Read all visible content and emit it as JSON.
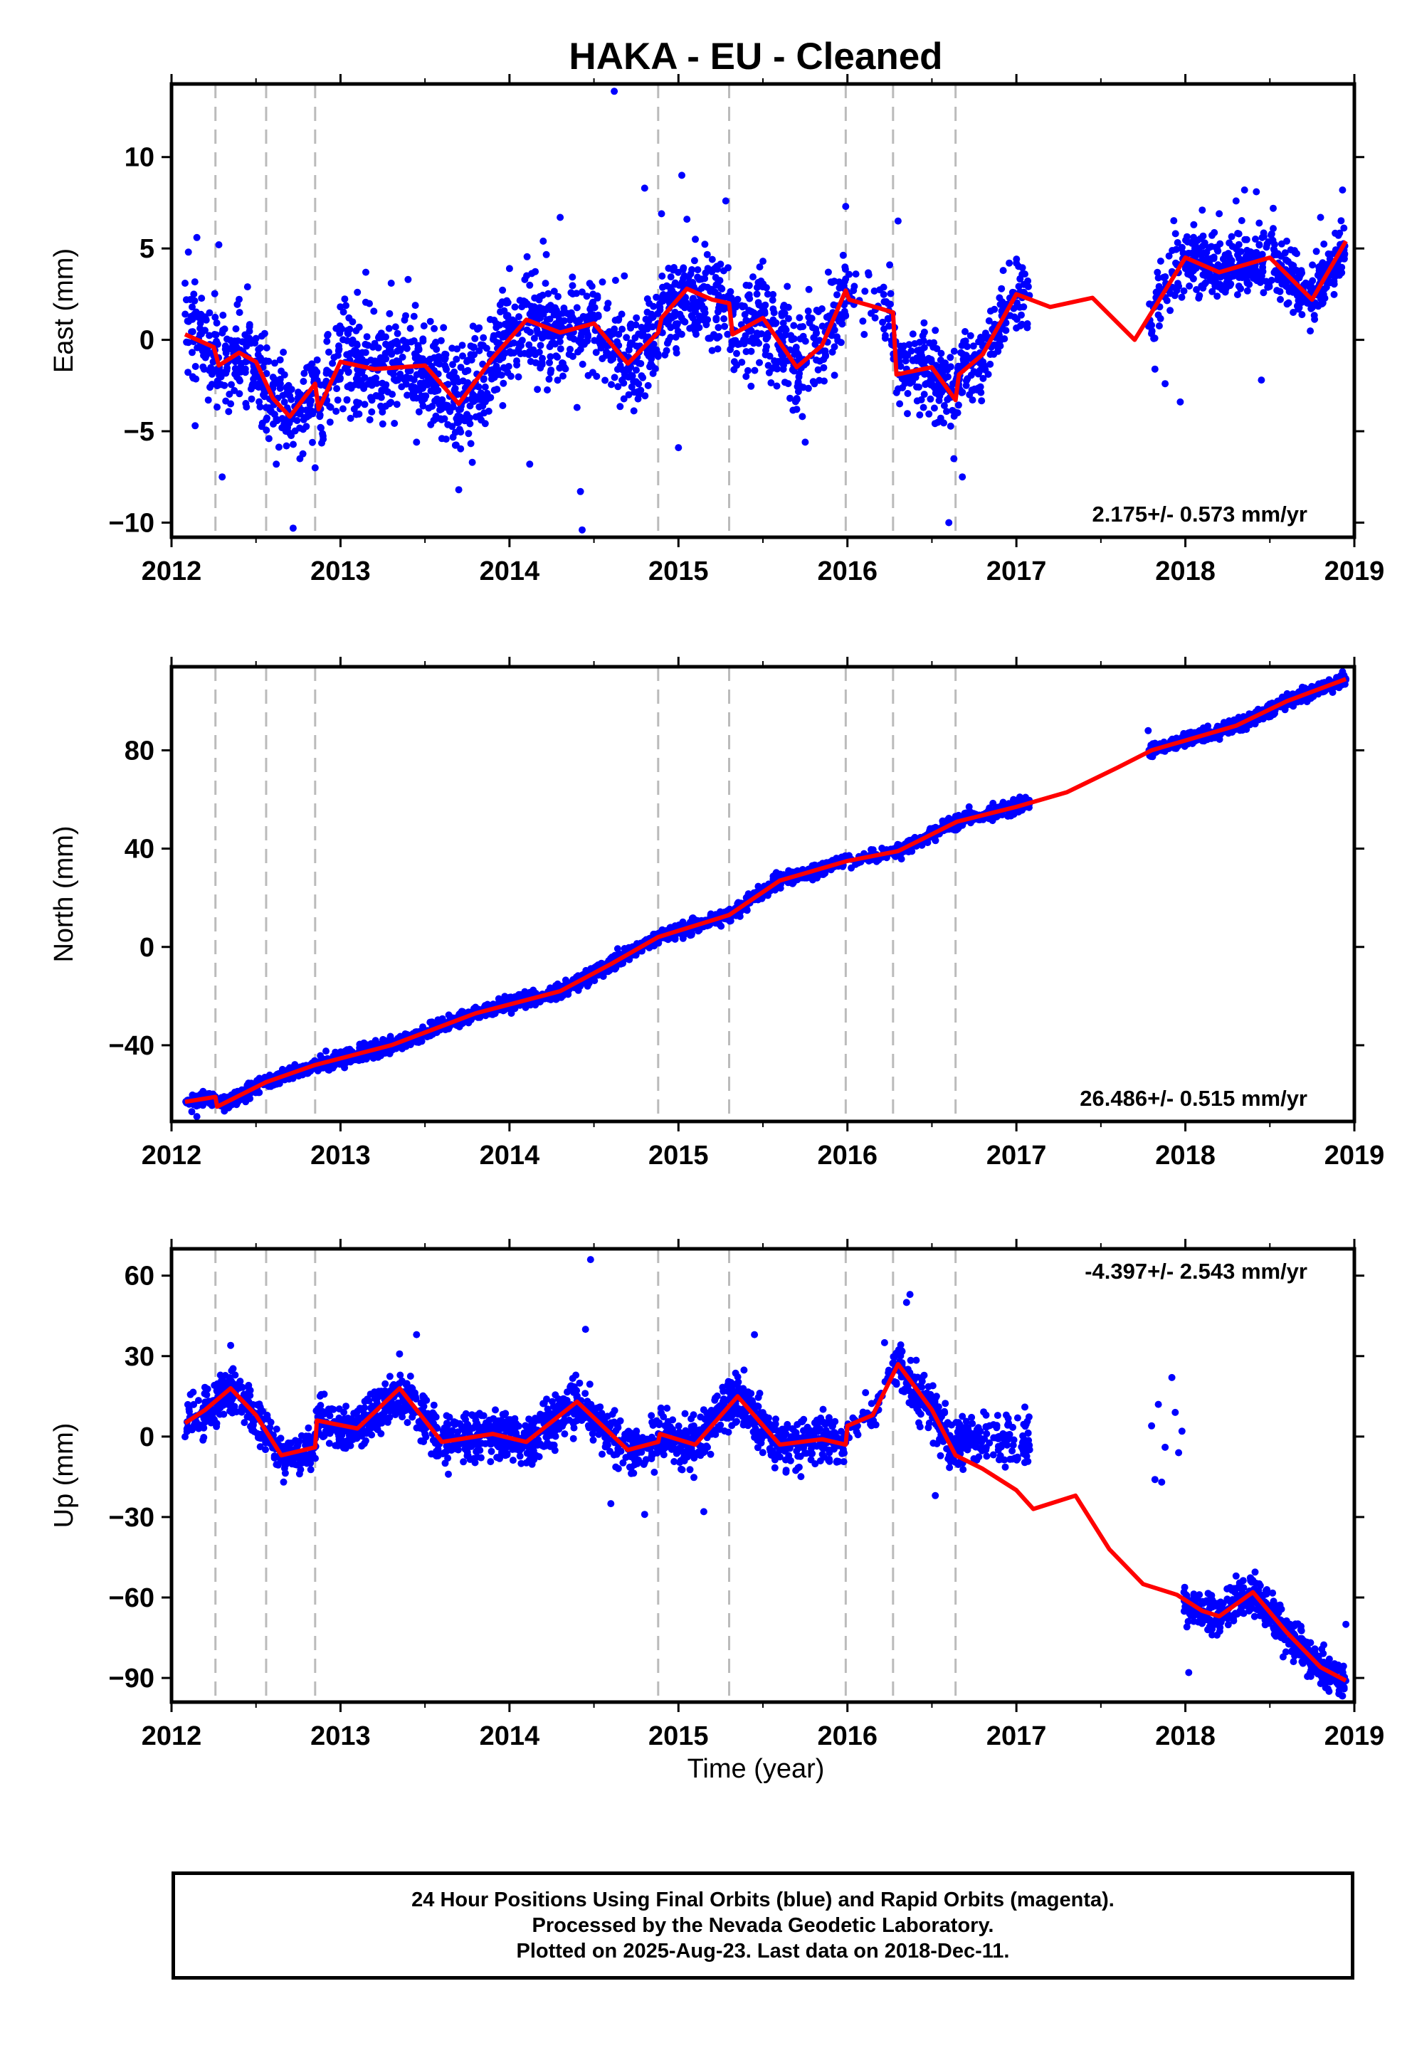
{
  "title": "HAKA  - EU - Cleaned",
  "xlabel": "Time (year)",
  "colors": {
    "points": "#0000ff",
    "fit": "#ff0000",
    "offset_lines": "#bbbbbb",
    "axes": "#000000"
  },
  "footer": {
    "line1": "24 Hour Positions Using Final Orbits (blue) and Rapid Orbits (magenta).",
    "line2": "Processed by the Nevada Geodetic Laboratory.",
    "line3": "Plotted on 2025-Aug-23. Last data on 2018-Dec-11."
  },
  "chart_data": [
    {
      "type": "scatter",
      "component": "east",
      "ylabel": "East (mm)",
      "xlim": [
        2012,
        2019
      ],
      "ylim": [
        -10.8,
        14
      ],
      "xticks": [
        2012,
        2013,
        2014,
        2015,
        2016,
        2017,
        2018,
        2019
      ],
      "yticks": [
        -10,
        -5,
        0,
        5,
        10
      ],
      "ytick_labels": [
        "−10",
        "−5",
        "0",
        "5",
        "10"
      ],
      "rate_text": "2.175+/- 0.573 mm/yr",
      "rate_position": "bottom-right",
      "offsets": [
        2012.26,
        2012.56,
        2012.85,
        2014.88,
        2015.3,
        2015.99,
        2016.27,
        2016.64
      ],
      "fit": {
        "x": [
          2012.08,
          2012.25,
          2012.28,
          2012.4,
          2012.5,
          2012.6,
          2012.7,
          2012.85,
          2012.87,
          2013.0,
          2013.2,
          2013.5,
          2013.7,
          2013.9,
          2014.1,
          2014.3,
          2014.5,
          2014.7,
          2014.88,
          2014.9,
          2015.05,
          2015.2,
          2015.3,
          2015.32,
          2015.5,
          2015.7,
          2015.85,
          2015.99,
          2016.01,
          2016.2,
          2016.27,
          2016.29,
          2016.5,
          2016.64,
          2016.66,
          2016.8,
          2017.0,
          2017.2,
          2017.45,
          2017.7,
          2017.8,
          2018.0,
          2018.2,
          2018.35,
          2018.5,
          2018.75,
          2018.95
        ],
        "y": [
          0.3,
          -0.4,
          -1.4,
          -0.7,
          -1.2,
          -3.2,
          -4.2,
          -2.4,
          -3.8,
          -1.2,
          -1.6,
          -1.4,
          -3.5,
          -1.0,
          1.1,
          0.4,
          0.9,
          -1.3,
          0.4,
          1.2,
          2.8,
          2.2,
          2.0,
          0.3,
          1.2,
          -1.5,
          -0.3,
          2.7,
          2.2,
          1.7,
          1.5,
          -1.9,
          -1.5,
          -3.3,
          -1.9,
          -0.8,
          2.5,
          1.8,
          2.3,
          0.0,
          1.5,
          4.5,
          3.7,
          4.1,
          4.5,
          2.2,
          5.4
        ]
      },
      "points": [
        {
          "t": 2012.08,
          "v": 3.1
        },
        {
          "t": 2012.1,
          "v": 4.8
        },
        {
          "t": 2012.15,
          "v": 5.6
        },
        {
          "t": 2012.14,
          "v": -4.7
        },
        {
          "t": 2012.28,
          "v": 5.2
        },
        {
          "t": 2012.3,
          "v": -7.5
        },
        {
          "t": 2012.35,
          "v": -3.5
        },
        {
          "t": 2012.45,
          "v": 2.9
        },
        {
          "t": 2012.62,
          "v": -6.8
        },
        {
          "t": 2012.68,
          "v": -5.8
        },
        {
          "t": 2012.72,
          "v": -10.3
        },
        {
          "t": 2012.76,
          "v": -6.5
        },
        {
          "t": 2012.8,
          "v": -3.3
        },
        {
          "t": 2012.85,
          "v": -7.0
        },
        {
          "t": 2013.05,
          "v": 1.2
        },
        {
          "t": 2013.1,
          "v": 2.6
        },
        {
          "t": 2013.15,
          "v": 3.7
        },
        {
          "t": 2013.3,
          "v": 3.1
        },
        {
          "t": 2013.25,
          "v": -4.6
        },
        {
          "t": 2013.4,
          "v": 3.3
        },
        {
          "t": 2013.45,
          "v": -5.6
        },
        {
          "t": 2013.6,
          "v": -5.4
        },
        {
          "t": 2013.7,
          "v": -8.2
        },
        {
          "t": 2013.78,
          "v": -6.7
        },
        {
          "t": 2013.85,
          "v": -4.0
        },
        {
          "t": 2014.0,
          "v": 3.9
        },
        {
          "t": 2014.12,
          "v": -6.8
        },
        {
          "t": 2014.2,
          "v": 5.4
        },
        {
          "t": 2014.3,
          "v": 6.7
        },
        {
          "t": 2014.4,
          "v": -3.7
        },
        {
          "t": 2014.42,
          "v": -8.3
        },
        {
          "t": 2014.43,
          "v": -10.4
        },
        {
          "t": 2014.62,
          "v": 13.6
        },
        {
          "t": 2014.68,
          "v": 3.5
        },
        {
          "t": 2014.8,
          "v": 8.3
        },
        {
          "t": 2014.9,
          "v": 6.9
        },
        {
          "t": 2015.0,
          "v": -5.9
        },
        {
          "t": 2015.02,
          "v": 9.0
        },
        {
          "t": 2015.05,
          "v": 6.6
        },
        {
          "t": 2015.1,
          "v": 5.5
        },
        {
          "t": 2015.2,
          "v": 4.4
        },
        {
          "t": 2015.28,
          "v": 7.6
        },
        {
          "t": 2015.4,
          "v": -2.0
        },
        {
          "t": 2015.5,
          "v": 4.3
        },
        {
          "t": 2015.7,
          "v": -3.8
        },
        {
          "t": 2015.75,
          "v": -5.6
        },
        {
          "t": 2015.99,
          "v": 7.3
        },
        {
          "t": 2016.05,
          "v": 3.6
        },
        {
          "t": 2016.25,
          "v": 4.1
        },
        {
          "t": 2016.3,
          "v": 6.5
        },
        {
          "t": 2016.45,
          "v": -3.7
        },
        {
          "t": 2016.6,
          "v": -10.0
        },
        {
          "t": 2016.63,
          "v": -6.5
        },
        {
          "t": 2016.68,
          "v": -7.5
        },
        {
          "t": 2016.9,
          "v": 2.3
        },
        {
          "t": 2017.0,
          "v": 4.2
        },
        {
          "t": 2017.05,
          "v": 3.6
        },
        {
          "t": 2017.8,
          "v": 0.8
        },
        {
          "t": 2017.82,
          "v": -1.6
        },
        {
          "t": 2017.88,
          "v": -2.4
        },
        {
          "t": 2017.97,
          "v": -3.4
        },
        {
          "t": 2018.05,
          "v": 6.3
        },
        {
          "t": 2018.1,
          "v": 7.1
        },
        {
          "t": 2018.2,
          "v": 6.9
        },
        {
          "t": 2018.3,
          "v": 7.6
        },
        {
          "t": 2018.35,
          "v": 8.2
        },
        {
          "t": 2018.42,
          "v": 8.1
        },
        {
          "t": 2018.45,
          "v": -2.2
        },
        {
          "t": 2018.52,
          "v": 7.2
        },
        {
          "t": 2018.6,
          "v": 5.4
        },
        {
          "t": 2018.8,
          "v": 6.7
        },
        {
          "t": 2018.93,
          "v": 8.2
        }
      ],
      "cloud": [
        {
          "start": 2012.08,
          "end": 2012.26,
          "amp": 2.3,
          "n": 70
        },
        {
          "start": 2012.26,
          "end": 2012.56,
          "amp": 2.1,
          "n": 130
        },
        {
          "start": 2012.56,
          "end": 2012.85,
          "amp": 2.0,
          "n": 120
        },
        {
          "start": 2012.85,
          "end": 2013.6,
          "amp": 2.4,
          "n": 360
        },
        {
          "start": 2013.6,
          "end": 2013.95,
          "amp": 2.2,
          "n": 170
        },
        {
          "start": 2013.95,
          "end": 2014.88,
          "amp": 2.3,
          "n": 430
        },
        {
          "start": 2014.88,
          "end": 2015.3,
          "amp": 2.0,
          "n": 200
        },
        {
          "start": 2015.3,
          "end": 2015.99,
          "amp": 2.2,
          "n": 300
        },
        {
          "start": 2015.99,
          "end": 2016.27,
          "amp": 1.8,
          "n": 40
        },
        {
          "start": 2016.27,
          "end": 2016.64,
          "amp": 1.9,
          "n": 160
        },
        {
          "start": 2016.64,
          "end": 2017.08,
          "amp": 1.6,
          "n": 160
        },
        {
          "start": 2017.78,
          "end": 2017.99,
          "amp": 1.8,
          "n": 60
        },
        {
          "start": 2017.99,
          "end": 2018.95,
          "amp": 1.4,
          "n": 480
        }
      ]
    },
    {
      "type": "scatter",
      "component": "north",
      "ylabel": "North (mm)",
      "xlim": [
        2012,
        2019
      ],
      "ylim": [
        -71,
        114
      ],
      "xticks": [
        2012,
        2013,
        2014,
        2015,
        2016,
        2017,
        2018,
        2019
      ],
      "yticks": [
        -40,
        0,
        40,
        80
      ],
      "ytick_labels": [
        "−40",
        "0",
        "40",
        "80"
      ],
      "rate_text": "26.486+/- 0.515 mm/yr",
      "rate_position": "bottom-right",
      "offsets": [
        2012.26,
        2012.56,
        2012.85,
        2014.88,
        2015.3,
        2015.99,
        2016.27,
        2016.64
      ],
      "fit": {
        "x": [
          2012.08,
          2012.26,
          2012.27,
          2012.56,
          2012.85,
          2013.3,
          2013.8,
          2014.3,
          2014.6,
          2014.88,
          2015.3,
          2015.6,
          2016.0,
          2016.3,
          2016.65,
          2017.0,
          2017.3,
          2017.6,
          2017.8,
          2018.0,
          2018.3,
          2018.6,
          2018.95
        ],
        "y": [
          -63,
          -61,
          -65,
          -55,
          -48,
          -40,
          -27,
          -18,
          -7,
          4,
          13,
          27,
          35,
          39,
          51,
          57,
          63,
          73,
          80,
          84,
          90,
          100,
          109
        ]
      },
      "points": [
        {
          "t": 2012.12,
          "v": -67
        },
        {
          "t": 2012.15,
          "v": -69
        },
        {
          "t": 2016.72,
          "v": 57
        },
        {
          "t": 2017.02,
          "v": 61
        },
        {
          "t": 2017.78,
          "v": 88
        },
        {
          "t": 2018.93,
          "v": 112
        }
      ],
      "cloud": [
        {
          "start": 2012.08,
          "end": 2012.26,
          "amp": 2.4,
          "n": 70
        },
        {
          "start": 2012.26,
          "end": 2012.56,
          "amp": 2.4,
          "n": 130
        },
        {
          "start": 2012.56,
          "end": 2012.85,
          "amp": 2.4,
          "n": 120
        },
        {
          "start": 2012.85,
          "end": 2013.95,
          "amp": 2.6,
          "n": 520
        },
        {
          "start": 2013.95,
          "end": 2014.88,
          "amp": 2.6,
          "n": 430
        },
        {
          "start": 2014.88,
          "end": 2015.3,
          "amp": 2.5,
          "n": 200
        },
        {
          "start": 2015.3,
          "end": 2015.99,
          "amp": 2.5,
          "n": 300
        },
        {
          "start": 2015.99,
          "end": 2016.27,
          "amp": 2.3,
          "n": 40
        },
        {
          "start": 2016.27,
          "end": 2016.64,
          "amp": 2.5,
          "n": 160
        },
        {
          "start": 2016.64,
          "end": 2017.08,
          "amp": 2.4,
          "n": 160
        },
        {
          "start": 2017.78,
          "end": 2017.99,
          "amp": 2.4,
          "n": 60
        },
        {
          "start": 2017.99,
          "end": 2018.95,
          "amp": 2.4,
          "n": 480
        }
      ]
    },
    {
      "type": "scatter",
      "component": "up",
      "ylabel": "Up (mm)",
      "xlim": [
        2012,
        2019
      ],
      "ylim": [
        -99,
        70
      ],
      "xticks": [
        2012,
        2013,
        2014,
        2015,
        2016,
        2017,
        2018,
        2019
      ],
      "yticks": [
        -90,
        -60,
        -30,
        0,
        30,
        60
      ],
      "ytick_labels": [
        "−90",
        "−60",
        "−30",
        "0",
        "30",
        "60"
      ],
      "rate_text": "-4.397+/- 2.543 mm/yr",
      "rate_position": "top-right",
      "offsets": [
        2012.26,
        2012.56,
        2012.85,
        2014.88,
        2015.3,
        2015.99,
        2016.27,
        2016.64
      ],
      "fit": {
        "x": [
          2012.08,
          2012.2,
          2012.35,
          2012.5,
          2012.65,
          2012.85,
          2012.86,
          2013.1,
          2013.35,
          2013.6,
          2013.9,
          2014.1,
          2014.4,
          2014.7,
          2014.88,
          2014.89,
          2015.1,
          2015.35,
          2015.6,
          2015.85,
          2015.99,
          2016.0,
          2016.15,
          2016.3,
          2016.5,
          2016.64,
          2016.8,
          2017.0,
          2017.1,
          2017.35,
          2017.55,
          2017.75,
          2017.95,
          2018.1,
          2018.2,
          2018.4,
          2018.6,
          2018.8,
          2018.95
        ],
        "y": [
          5,
          10,
          18,
          8,
          -7,
          -4,
          6,
          3,
          18,
          -2,
          1,
          -2,
          13,
          -5,
          -2,
          1,
          -3,
          15,
          -3,
          -1,
          -3,
          4,
          8,
          27,
          10,
          -7,
          -12,
          -20,
          -27,
          -22,
          -42,
          -55,
          -59,
          -65,
          -67,
          -58,
          -73,
          -86,
          -91
        ]
      },
      "points": [
        {
          "t": 2012.35,
          "v": 34
        },
        {
          "t": 2013.45,
          "v": 38
        },
        {
          "t": 2014.45,
          "v": 40
        },
        {
          "t": 2014.48,
          "v": 66
        },
        {
          "t": 2014.6,
          "v": -25
        },
        {
          "t": 2014.8,
          "v": -29
        },
        {
          "t": 2015.15,
          "v": -28
        },
        {
          "t": 2015.45,
          "v": 38
        },
        {
          "t": 2016.22,
          "v": 35
        },
        {
          "t": 2016.35,
          "v": 50
        },
        {
          "t": 2016.37,
          "v": 53
        },
        {
          "t": 2017.05,
          "v": 11
        },
        {
          "t": 2016.52,
          "v": -22
        },
        {
          "t": 2017.8,
          "v": 4
        },
        {
          "t": 2017.82,
          "v": -16
        },
        {
          "t": 2017.84,
          "v": 12
        },
        {
          "t": 2017.86,
          "v": -17
        },
        {
          "t": 2017.88,
          "v": -4
        },
        {
          "t": 2017.92,
          "v": 22
        },
        {
          "t": 2017.94,
          "v": 9
        },
        {
          "t": 2017.96,
          "v": -6
        },
        {
          "t": 2017.98,
          "v": 2
        },
        {
          "t": 2018.02,
          "v": -88
        },
        {
          "t": 2018.3,
          "v": -52
        },
        {
          "t": 2018.85,
          "v": -95
        },
        {
          "t": 2018.95,
          "v": -70
        }
      ],
      "cloud": [
        {
          "start": 2012.08,
          "end": 2012.26,
          "amp": 7,
          "n": 70
        },
        {
          "start": 2012.26,
          "end": 2012.56,
          "amp": 7,
          "n": 130
        },
        {
          "start": 2012.56,
          "end": 2012.85,
          "amp": 6,
          "n": 120
        },
        {
          "start": 2012.85,
          "end": 2013.95,
          "amp": 8,
          "n": 520
        },
        {
          "start": 2013.95,
          "end": 2014.88,
          "amp": 8,
          "n": 430
        },
        {
          "start": 2014.88,
          "end": 2015.3,
          "amp": 8,
          "n": 200
        },
        {
          "start": 2015.3,
          "end": 2015.99,
          "amp": 8,
          "n": 300
        },
        {
          "start": 2015.99,
          "end": 2016.27,
          "amp": 6,
          "n": 40
        },
        {
          "start": 2016.27,
          "end": 2016.64,
          "amp": 9,
          "n": 160
        },
        {
          "start": 2016.64,
          "end": 2017.08,
          "amp": 8,
          "n": 160
        },
        {
          "start": 2017.99,
          "end": 2018.95,
          "amp": 6,
          "n": 480
        }
      ],
      "cloud_override": [
        {
          "start": 2016.64,
          "end": 2017.08,
          "center": -1
        },
        {
          "start": 2017.99,
          "end": 2018.95,
          "center_offset": 0
        }
      ]
    }
  ]
}
